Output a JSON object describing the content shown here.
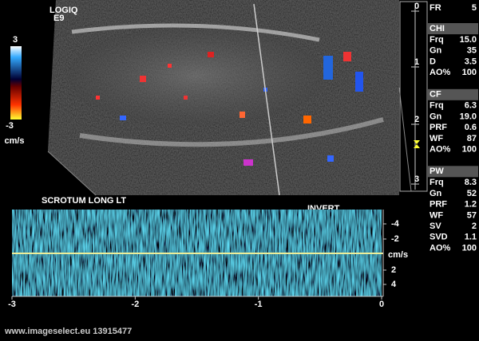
{
  "header": {
    "brand": "LOGIQ",
    "model": "E9"
  },
  "color_scale": {
    "max": "3",
    "min": "-3",
    "unit": "cm/s"
  },
  "depth_scale": [
    "0",
    "1",
    "2",
    "3"
  ],
  "probe_label": "SCROTUM LONG LT",
  "invert_label": "INVERT",
  "parameters": {
    "frame_rate": {
      "label": "FR",
      "value": "5"
    },
    "sections": [
      {
        "title": "CHI",
        "rows": [
          [
            "Frq",
            "15.0"
          ],
          [
            "Gn",
            "35"
          ],
          [
            "D",
            "3.5"
          ],
          [
            "AO%",
            "100"
          ]
        ]
      },
      {
        "title": "CF",
        "rows": [
          [
            "Frq",
            "6.3"
          ],
          [
            "Gn",
            "19.0"
          ],
          [
            "PRF",
            "0.6"
          ],
          [
            "WF",
            "87"
          ],
          [
            "AO%",
            "100"
          ]
        ]
      },
      {
        "title": "PW",
        "rows": [
          [
            "Frq",
            "8.3"
          ],
          [
            "Gn",
            "52"
          ],
          [
            "PRF",
            "1.2"
          ],
          [
            "WF",
            "57"
          ],
          [
            "SV",
            "2"
          ],
          [
            "SVD",
            "1.1"
          ],
          [
            "AO%",
            "100"
          ]
        ]
      }
    ]
  },
  "spectrum": {
    "velocity_ticks": [
      "-4",
      "-2",
      "2",
      "4"
    ],
    "velocity_unit": "cm/s",
    "time_ticks": [
      "-3",
      "-2",
      "-1",
      "0"
    ]
  },
  "footer": "www.imageselect.eu 13915477"
}
